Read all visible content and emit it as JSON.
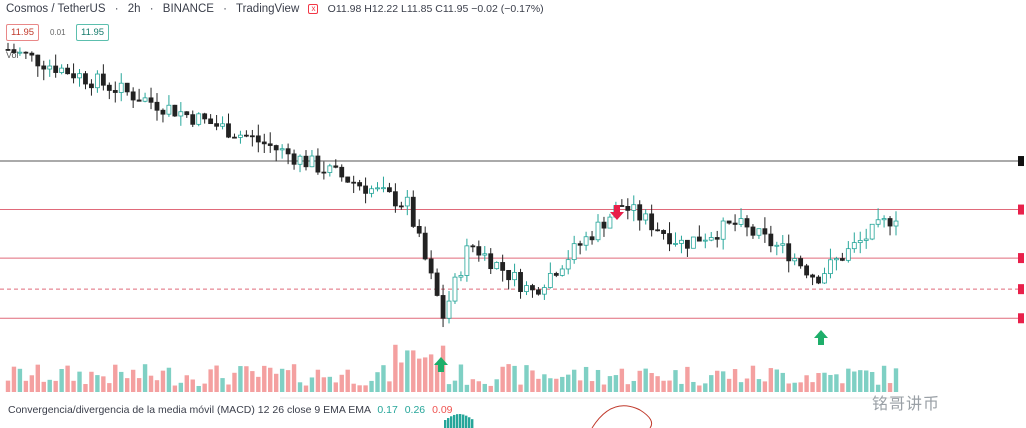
{
  "header": {
    "symbol": "Cosmos / TetherUS",
    "interval": "2h",
    "exchange": "BINANCE",
    "platform": "TradingView",
    "ohlc": "O11.98 H12.22 L11.85 C11.95 −0.02 (−0.17%)",
    "x_icon": "x"
  },
  "price_boxes": {
    "bid": "11.95",
    "spread": "0.01",
    "ask": "11.95"
  },
  "vol_label": "Vol",
  "macd": {
    "label": "Convergencia/divergencia de la media móvil (MACD) 12 26 close 9 EMA EMA",
    "v1": "0.17",
    "v2": "0.26",
    "v3": "0.09"
  },
  "watermark": "铭哥讲币",
  "colors": {
    "up": "#26a69a",
    "down": "#222222",
    "volUp": "#7fd0c4",
    "volDown": "#f4a0a0",
    "hline": "#e06a7a",
    "hlineTop": "#777777",
    "arrowUp": "#1eae6a",
    "arrowDown": "#e8204a"
  },
  "chart_data": {
    "type": "candlestick",
    "ylim": [
      9.0,
      12.4
    ],
    "levels": [
      {
        "price": 11.05,
        "style": "solid",
        "color": "gray"
      },
      {
        "price": 10.55,
        "style": "solid",
        "color": "red"
      },
      {
        "price": 10.05,
        "style": "solid",
        "color": "red"
      },
      {
        "price": 9.73,
        "style": "dashed",
        "color": "red"
      },
      {
        "price": 9.43,
        "style": "solid",
        "color": "red"
      }
    ],
    "arrows": [
      {
        "index": 3,
        "type": "up"
      },
      {
        "index": 7,
        "type": "down"
      },
      {
        "index": 11,
        "type": "up"
      }
    ],
    "keypoints": [
      {
        "i": 0,
        "close": 12.2
      },
      {
        "i": 1,
        "close": 11.3
      },
      {
        "i": 2,
        "close": 10.6
      },
      {
        "i": 3,
        "close": 9.45
      },
      {
        "i": 4,
        "close": 10.2
      },
      {
        "i": 5,
        "close": 9.7
      },
      {
        "i": 6,
        "close": 10.15
      },
      {
        "i": 7,
        "close": 10.6
      },
      {
        "i": 8,
        "close": 10.2
      },
      {
        "i": 9,
        "close": 10.4
      },
      {
        "i": 10,
        "close": 10.1
      },
      {
        "i": 11,
        "close": 9.85
      },
      {
        "i": 12,
        "close": 10.15
      },
      {
        "i": 13,
        "close": 10.5
      }
    ]
  }
}
